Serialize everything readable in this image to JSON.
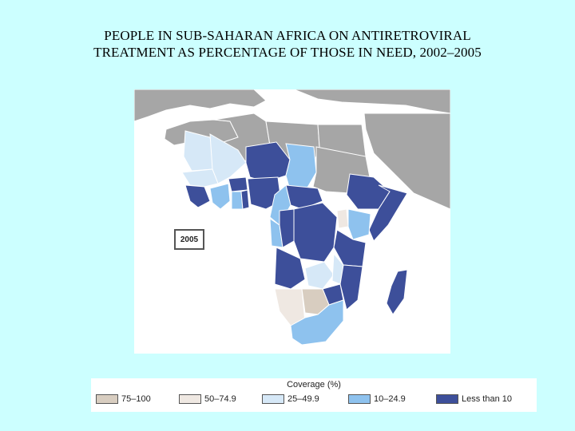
{
  "title": {
    "line1": "PEOPLE IN SUB-SAHARAN AFRICA ON ANTIRETROVIRAL",
    "line2": "TREATMENT AS PERCENTAGE OF THOSE IN NEED, 2002–2005"
  },
  "map": {
    "year_label": "2005"
  },
  "legend": {
    "title": "Coverage (%)",
    "items": [
      {
        "label": "75–100",
        "color": "#d8cdc0"
      },
      {
        "label": "50–74.9",
        "color": "#efe8e2"
      },
      {
        "label": "25–49.9",
        "color": "#d6e8f7"
      },
      {
        "label": "10–24.9",
        "color": "#8ec2ee"
      },
      {
        "label": "Less than 10",
        "color": "#3d4f9a"
      }
    ]
  },
  "colors": {
    "background": "#ccffff",
    "no_data": "#a6a6a6",
    "ocean": "#ffffff"
  }
}
